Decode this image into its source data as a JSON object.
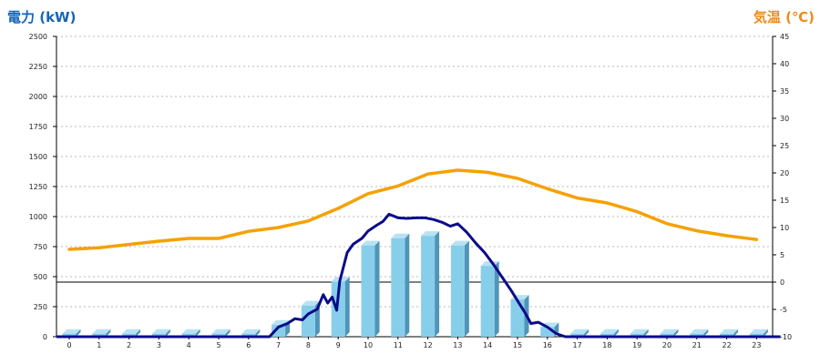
{
  "chart_data": {
    "type": "bar",
    "y_left_title": "電力 (kW)",
    "y_right_title": "気温 (℃)",
    "categories": [
      "0",
      "1",
      "2",
      "3",
      "4",
      "5",
      "6",
      "7",
      "8",
      "9",
      "10",
      "11",
      "12",
      "13",
      "14",
      "15",
      "16",
      "17",
      "18",
      "19",
      "20",
      "21",
      "22",
      "23"
    ],
    "y_left_ticks": [
      "0",
      "250",
      "500",
      "750",
      "1000",
      "1250",
      "1500",
      "1750",
      "2000",
      "2250",
      "2500"
    ],
    "y_right_ticks": [
      "-10",
      "-5",
      "0",
      "5",
      "10",
      "15",
      "20",
      "25",
      "30",
      "35",
      "40",
      "45"
    ],
    "ylim_left": [
      0,
      2500
    ],
    "ylim_right": [
      -10,
      45
    ],
    "grid": true,
    "series": [
      {
        "kind": "bar",
        "axis": "left",
        "values": [
          25,
          25,
          25,
          25,
          25,
          25,
          25,
          100,
          260,
          460,
          760,
          820,
          840,
          760,
          590,
          310,
          80,
          25,
          25,
          25,
          25,
          25,
          25,
          25
        ]
      },
      {
        "kind": "line",
        "axis": "left",
        "x": [
          6.7,
          7.0,
          7.3,
          7.55,
          7.8,
          8.0,
          8.3,
          8.5,
          8.65,
          8.8,
          8.95,
          9.05,
          9.3,
          9.5,
          9.8,
          10.0,
          10.3,
          10.5,
          10.7,
          11.0,
          11.3,
          11.6,
          11.9,
          12.2,
          12.5,
          12.75,
          13.0,
          13.3,
          13.6,
          13.9,
          14.2,
          14.5,
          14.8,
          15.0,
          15.25,
          15.45,
          15.7,
          16.0,
          16.3,
          16.6,
          23.8
        ],
        "values": [
          0,
          80,
          110,
          150,
          140,
          190,
          230,
          350,
          280,
          330,
          220,
          460,
          700,
          770,
          820,
          880,
          930,
          960,
          1020,
          990,
          985,
          990,
          990,
          975,
          950,
          920,
          940,
          870,
          780,
          700,
          600,
          490,
          380,
          300,
          200,
          110,
          120,
          80,
          25,
          0,
          0
        ]
      },
      {
        "kind": "line",
        "axis": "right",
        "values": [
          6,
          6.3,
          6.9,
          7.5,
          8,
          8,
          9.3,
          10,
          11.2,
          13.5,
          16.2,
          17.6,
          19.8,
          20.5,
          20.1,
          19,
          17.1,
          15.4,
          14.5,
          12.9,
          10.7,
          9.4,
          8.5,
          7.8
        ]
      }
    ],
    "colors": {
      "bar": "#87ceeb",
      "bar_top": "#b8e2f4",
      "bar_side": "#4f95b8",
      "power_line": "#0b0b8a",
      "temp_line": "#f5a100",
      "left_title": "#1565b5",
      "right_title": "#f08a16"
    }
  }
}
